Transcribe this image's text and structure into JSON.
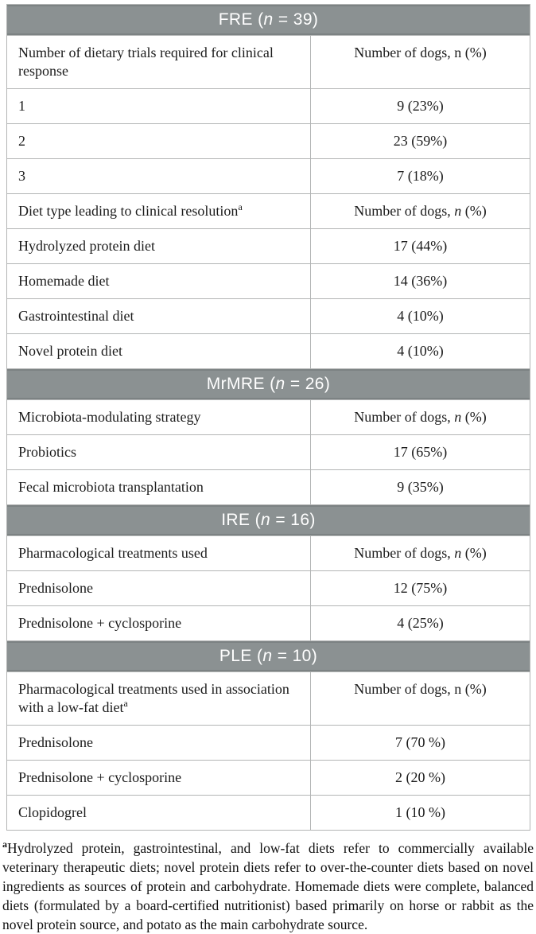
{
  "colors": {
    "section_bar_background": "#8b9192",
    "section_bar_text": "#ffffff",
    "cell_border": "#b3b5b5",
    "body_text": "#1b1b1b"
  },
  "table": {
    "sections": [
      {
        "id": "FRE",
        "header": [
          {
            "t": "FRE ("
          },
          {
            "t": "n",
            "i": true
          },
          {
            "t": " = 39)"
          }
        ],
        "rows": [
          {
            "label": [
              {
                "t": "Number of dietary trials required for clinical response"
              }
            ],
            "value": [
              {
                "t": "Number of dogs, n (%)"
              }
            ]
          },
          {
            "label": [
              {
                "t": "1"
              }
            ],
            "value": [
              {
                "t": "9 (23%)"
              }
            ]
          },
          {
            "label": [
              {
                "t": "2"
              }
            ],
            "value": [
              {
                "t": "23 (59%)"
              }
            ]
          },
          {
            "label": [
              {
                "t": "3"
              }
            ],
            "value": [
              {
                "t": "7 (18%)"
              }
            ]
          },
          {
            "label": [
              {
                "t": "Diet type leading to clinical resolution"
              },
              {
                "t": "a",
                "sup": true
              }
            ],
            "value": [
              {
                "t": "Number of dogs, "
              },
              {
                "t": "n",
                "i": true
              },
              {
                "t": " (%)"
              }
            ]
          },
          {
            "label": [
              {
                "t": "Hydrolyzed protein diet"
              }
            ],
            "value": [
              {
                "t": "17 (44%)"
              }
            ]
          },
          {
            "label": [
              {
                "t": "Homemade diet"
              }
            ],
            "value": [
              {
                "t": "14 (36%)"
              }
            ]
          },
          {
            "label": [
              {
                "t": "Gastrointestinal diet"
              }
            ],
            "value": [
              {
                "t": "4 (10%)"
              }
            ]
          },
          {
            "label": [
              {
                "t": "Novel protein diet"
              }
            ],
            "value": [
              {
                "t": "4 (10%)"
              }
            ]
          }
        ]
      },
      {
        "id": "MrMRE",
        "header": [
          {
            "t": "MrMRE ("
          },
          {
            "t": "n",
            "i": true
          },
          {
            "t": " = 26)"
          }
        ],
        "rows": [
          {
            "label": [
              {
                "t": "Microbiota-modulating strategy"
              }
            ],
            "value": [
              {
                "t": "Number of dogs, "
              },
              {
                "t": "n",
                "i": true
              },
              {
                "t": " (%)"
              }
            ]
          },
          {
            "label": [
              {
                "t": "Probiotics"
              }
            ],
            "value": [
              {
                "t": "17 (65%)"
              }
            ]
          },
          {
            "label": [
              {
                "t": "Fecal microbiota transplantation"
              }
            ],
            "value": [
              {
                "t": "9 (35%)"
              }
            ]
          }
        ]
      },
      {
        "id": "IRE",
        "header": [
          {
            "t": "IRE ("
          },
          {
            "t": "n",
            "i": true
          },
          {
            "t": " = 16)"
          }
        ],
        "rows": [
          {
            "label": [
              {
                "t": "Pharmacological treatments used"
              }
            ],
            "value": [
              {
                "t": "Number of dogs, "
              },
              {
                "t": "n",
                "i": true
              },
              {
                "t": " (%)"
              }
            ]
          },
          {
            "label": [
              {
                "t": "Prednisolone"
              }
            ],
            "value": [
              {
                "t": "12 (75%)"
              }
            ]
          },
          {
            "label": [
              {
                "t": "Prednisolone + cyclosporine"
              }
            ],
            "value": [
              {
                "t": "4 (25%)"
              }
            ]
          }
        ]
      },
      {
        "id": "PLE",
        "header": [
          {
            "t": "PLE ("
          },
          {
            "t": "n",
            "i": true
          },
          {
            "t": " = 10)"
          }
        ],
        "rows": [
          {
            "label": [
              {
                "t": "Pharmacological treatments used in association with a low-fat diet"
              },
              {
                "t": "a",
                "sup": true
              }
            ],
            "value": [
              {
                "t": "Number of dogs, n (%)"
              }
            ]
          },
          {
            "label": [
              {
                "t": "Prednisolone"
              }
            ],
            "value": [
              {
                "t": "7 (70 %)"
              }
            ]
          },
          {
            "label": [
              {
                "t": "Prednisolone + cyclosporine"
              }
            ],
            "value": [
              {
                "t": "2 (20 %)"
              }
            ]
          },
          {
            "label": [
              {
                "t": "Clopidogrel"
              }
            ],
            "value": [
              {
                "t": "1 (10 %)"
              }
            ]
          }
        ]
      }
    ]
  },
  "footnote": {
    "segments": [
      {
        "t": "a",
        "sup": true
      },
      {
        "t": "Hydrolyzed protein, gastrointestinal, and low-fat diets refer to commercially available veterinary therapeutic diets; novel protein diets refer to over-the-counter diets based on novel ingredients as sources of protein and carbohydrate. Homemade diets were complete, balanced diets (formulated by a board-certified nutritionist) based primarily on horse or rabbit as the novel protein source, and potato as the main carbohydrate source."
      }
    ]
  }
}
